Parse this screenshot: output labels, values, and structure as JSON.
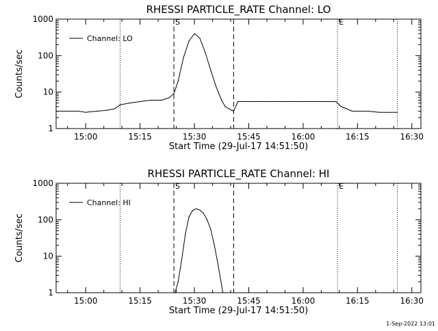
{
  "footer": {
    "timestamp": "1-Sep-2022 13:01"
  },
  "chart_data": [
    {
      "type": "line",
      "title": "RHESSI PARTICLE_RATE Channel: LO",
      "xlabel": "Start Time (29-Jul-17 14:51:50)",
      "ylabel": "Counts/sec",
      "yscale": "log",
      "ylim": [
        1,
        1000
      ],
      "xlim": [
        "14:51:50",
        "16:32:30"
      ],
      "x_ticks": [
        "15:00",
        "15:15",
        "15:30",
        "15:45",
        "16:00",
        "16:15",
        "16:30"
      ],
      "y_ticks": [
        "1",
        "10",
        "100",
        "1000"
      ],
      "legend": {
        "position": "top-left",
        "entries": [
          "Channel: LO"
        ]
      },
      "markers": [
        {
          "label": "S",
          "time": "15:24:20",
          "style": "dashed"
        },
        {
          "label": "",
          "time": "15:40:50",
          "style": "dashed"
        },
        {
          "label": "",
          "time": "15:09:30",
          "style": "dotted"
        },
        {
          "label": "E",
          "time": "16:09:30",
          "style": "dotted"
        },
        {
          "label": "",
          "time": "16:26:00",
          "style": "dotted"
        }
      ],
      "series": [
        {
          "name": "Channel: LO",
          "x": [
            "14:51:50",
            "14:55:00",
            "14:58:00",
            "15:00:00",
            "15:03:00",
            "15:06:00",
            "15:08:00",
            "15:09:30",
            "15:12:00",
            "15:15:00",
            "15:18:00",
            "15:21:00",
            "15:23:00",
            "15:24:20",
            "15:25:30",
            "15:27:00",
            "15:28:30",
            "15:30:00",
            "15:31:30",
            "15:33:00",
            "15:34:30",
            "15:36:00",
            "15:37:30",
            "15:38:30",
            "15:39:30",
            "15:40:50",
            "15:42:00",
            "15:45:00",
            "15:50:00",
            "15:55:00",
            "16:00:00",
            "16:05:00",
            "16:09:00",
            "16:10:30",
            "16:12:00",
            "16:13:30",
            "16:15:00",
            "16:18:00",
            "16:21:00",
            "16:24:00",
            "16:26:00"
          ],
          "y": [
            3,
            3,
            3,
            2.8,
            3,
            3.2,
            3.5,
            4.5,
            5,
            5.5,
            6,
            6,
            7,
            9,
            20,
            90,
            250,
            400,
            300,
            120,
            40,
            14,
            6,
            4,
            3.5,
            3,
            5.5,
            5.5,
            5.5,
            5.5,
            5.5,
            5.5,
            5.5,
            4,
            3.5,
            3,
            3,
            3,
            2.8,
            2.8,
            2.8
          ]
        }
      ]
    },
    {
      "type": "line",
      "title": "RHESSI PARTICLE_RATE Channel: HI",
      "xlabel": "Start Time (29-Jul-17 14:51:50)",
      "ylabel": "Counts/sec",
      "yscale": "log",
      "ylim": [
        1,
        1000
      ],
      "xlim": [
        "14:51:50",
        "16:32:30"
      ],
      "x_ticks": [
        "15:00",
        "15:15",
        "15:30",
        "15:45",
        "16:00",
        "16:15",
        "16:30"
      ],
      "y_ticks": [
        "1",
        "10",
        "100",
        "1000"
      ],
      "legend": {
        "position": "top-left",
        "entries": [
          "Channel: HI"
        ]
      },
      "markers": [
        {
          "label": "S",
          "time": "15:24:20",
          "style": "dashed"
        },
        {
          "label": "",
          "time": "15:40:50",
          "style": "dashed"
        },
        {
          "label": "",
          "time": "15:09:30",
          "style": "dotted"
        },
        {
          "label": "E",
          "time": "16:09:30",
          "style": "dotted"
        },
        {
          "label": "",
          "time": "16:26:00",
          "style": "dotted"
        }
      ],
      "series": [
        {
          "name": "Channel: HI",
          "x": [
            "15:24:40",
            "15:25:30",
            "15:26:30",
            "15:27:30",
            "15:28:30",
            "15:29:30",
            "15:30:30",
            "15:31:30",
            "15:32:30",
            "15:33:30",
            "15:34:30",
            "15:35:30",
            "15:36:30",
            "15:37:20",
            "15:37:50"
          ],
          "y": [
            1,
            2,
            8,
            40,
            120,
            180,
            200,
            185,
            150,
            100,
            55,
            20,
            6,
            2,
            1
          ]
        }
      ]
    }
  ]
}
